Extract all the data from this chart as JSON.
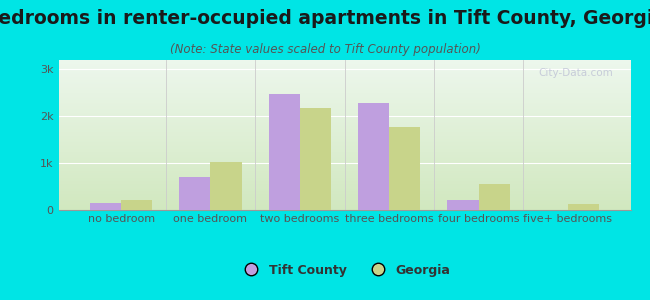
{
  "title": "Bedrooms in renter-occupied apartments in Tift County, Georgia",
  "subtitle": "(Note: State values scaled to Tift County population)",
  "categories": [
    "no bedroom",
    "one bedroom",
    "two bedrooms",
    "three bedrooms",
    "four bedrooms",
    "five+ bedrooms"
  ],
  "tift_values": [
    150,
    700,
    2480,
    2280,
    220,
    0
  ],
  "georgia_values": [
    220,
    1020,
    2180,
    1780,
    560,
    120
  ],
  "tift_color": "#bf9fdf",
  "georgia_color": "#c8d48a",
  "background_outer": "#00e5e5",
  "background_inner_top": "#eef6ee",
  "background_inner_bottom": "#d0e8c0",
  "ylim": [
    0,
    3200
  ],
  "yticks": [
    0,
    1000,
    2000,
    3000
  ],
  "ytick_labels": [
    "0",
    "1k",
    "2k",
    "3k"
  ],
  "legend_tift": "Tift County",
  "legend_georgia": "Georgia",
  "bar_width": 0.35,
  "title_fontsize": 13.5,
  "subtitle_fontsize": 8.5,
  "axis_label_fontsize": 8,
  "tick_label_fontsize": 8,
  "watermark": "City-Data.com"
}
